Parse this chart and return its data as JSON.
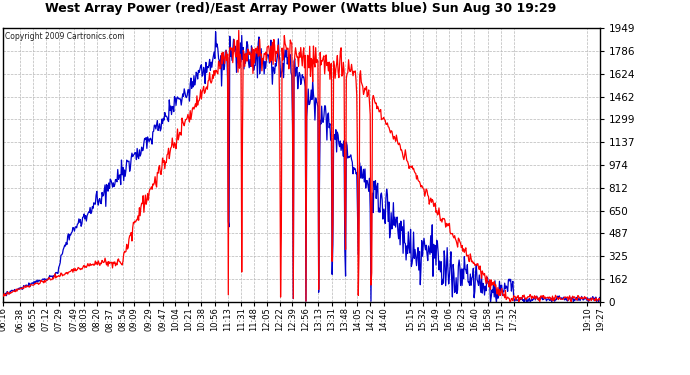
{
  "title": "West Array Power (red)/East Array Power (Watts blue) Sun Aug 30 19:29",
  "copyright": "Copyright 2009 Cartronics.com",
  "yticks": [
    0.0,
    162.4,
    324.8,
    487.2,
    649.6,
    812.1,
    974.5,
    1136.9,
    1299.3,
    1461.7,
    1624.1,
    1786.5,
    1948.9
  ],
  "ymax": 1948.9,
  "ymin": 0.0,
  "bg_color": "#ffffff",
  "plot_bg_color": "#ffffff",
  "grid_color": "#b8b8b8",
  "red_color": "#ff0000",
  "blue_color": "#0000cc",
  "title_color": "#000000",
  "xtick_labels": [
    "06:16",
    "06:38",
    "06:55",
    "07:12",
    "07:29",
    "07:49",
    "08:03",
    "08:20",
    "08:37",
    "08:54",
    "09:09",
    "09:29",
    "09:47",
    "10:04",
    "10:21",
    "10:38",
    "10:56",
    "11:13",
    "11:31",
    "11:48",
    "12:05",
    "12:22",
    "12:39",
    "12:56",
    "13:13",
    "13:31",
    "13:48",
    "14:05",
    "14:22",
    "14:40",
    "15:15",
    "15:32",
    "15:49",
    "16:06",
    "16:23",
    "16:40",
    "16:58",
    "17:15",
    "17:32",
    "19:10",
    "19:27"
  ]
}
